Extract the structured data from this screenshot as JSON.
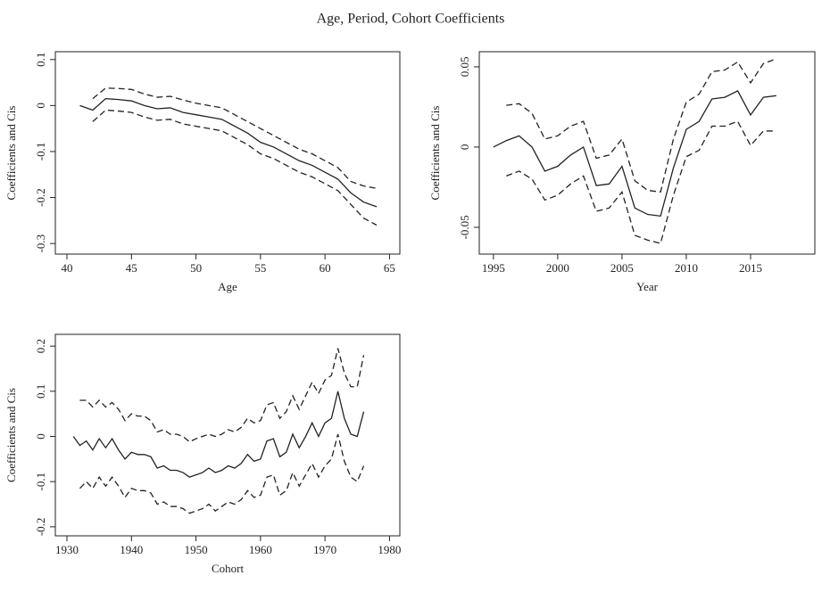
{
  "title": "Age, Period, Cohort Coefficients",
  "chart_data": [
    {
      "type": "line",
      "xlabel": "Age",
      "ylabel": "Coefficients and Cis",
      "x": [
        41,
        42,
        43,
        44,
        45,
        46,
        47,
        48,
        49,
        50,
        51,
        52,
        53,
        54,
        55,
        56,
        57,
        58,
        59,
        60,
        61,
        62,
        63,
        64
      ],
      "series": [
        {
          "color": "#222",
          "line_style": "solid",
          "values": [
            0,
            -0.01,
            0.015,
            0.013,
            0.01,
            0,
            -0.007,
            -0.005,
            -0.015,
            -0.02,
            -0.025,
            -0.03,
            -0.045,
            -0.06,
            -0.08,
            -0.09,
            -0.105,
            -0.12,
            -0.13,
            -0.145,
            -0.16,
            -0.19,
            -0.21,
            -0.22
          ]
        },
        {
          "color": "#222",
          "line_style": "dashed",
          "values": [
            null,
            0.015,
            0.038,
            0.037,
            0.035,
            0.025,
            0.018,
            0.02,
            0.012,
            0.005,
            0,
            -0.005,
            -0.02,
            -0.035,
            -0.05,
            -0.065,
            -0.08,
            -0.095,
            -0.105,
            -0.12,
            -0.135,
            -0.165,
            -0.175,
            -0.18
          ]
        },
        {
          "color": "#222",
          "line_style": "dashed",
          "values": [
            null,
            -0.035,
            -0.01,
            -0.012,
            -0.015,
            -0.025,
            -0.032,
            -0.03,
            -0.04,
            -0.045,
            -0.05,
            -0.055,
            -0.07,
            -0.085,
            -0.105,
            -0.115,
            -0.13,
            -0.145,
            -0.155,
            -0.17,
            -0.185,
            -0.215,
            -0.245,
            -0.26
          ]
        }
      ],
      "xlim": [
        39.1,
        65.8
      ],
      "xticks": [
        40,
        45,
        50,
        55,
        60,
        65
      ],
      "ylim": [
        -0.323,
        0.117
      ],
      "yticks": [
        0.1,
        0,
        -0.1,
        -0.2,
        -0.3
      ]
    },
    {
      "type": "line",
      "xlabel": "Year",
      "ylabel": "Coefficients and Cis",
      "x": [
        1995,
        1996,
        1997,
        1998,
        1999,
        2000,
        2001,
        2002,
        2003,
        2004,
        2005,
        2006,
        2007,
        2008,
        2009,
        2010,
        2011,
        2012,
        2013,
        2014,
        2015,
        2016,
        2017
      ],
      "series": [
        {
          "color": "#222",
          "line_style": "solid",
          "values": [
            0,
            0.004,
            0.007,
            0,
            -0.015,
            -0.012,
            -0.005,
            0,
            -0.024,
            -0.023,
            -0.012,
            -0.038,
            -0.042,
            -0.043,
            -0.013,
            0.011,
            0.016,
            0.03,
            0.031,
            0.035,
            0.02,
            0.031,
            0.032
          ]
        },
        {
          "color": "#222",
          "line_style": "dashed",
          "values": [
            null,
            0.026,
            0.027,
            0.021,
            0.005,
            0.007,
            0.013,
            0.016,
            -0.007,
            -0.005,
            0.005,
            -0.021,
            -0.027,
            -0.028,
            0.005,
            0.028,
            0.033,
            0.047,
            0.048,
            0.053,
            0.04,
            0.052,
            0.055
          ]
        },
        {
          "color": "#222",
          "line_style": "dashed",
          "values": [
            null,
            -0.018,
            -0.015,
            -0.02,
            -0.033,
            -0.03,
            -0.023,
            -0.018,
            -0.04,
            -0.038,
            -0.028,
            -0.055,
            -0.058,
            -0.06,
            -0.03,
            -0.006,
            -0.002,
            0.013,
            0.013,
            0.016,
            0.001,
            0.01,
            0.01
          ]
        }
      ],
      "xlim": [
        1993.9,
        2020.0
      ],
      "xticks": [
        1995,
        2000,
        2005,
        2010,
        2015
      ],
      "ylim": [
        -0.0667,
        0.0594
      ],
      "yticks": [
        0.05,
        0,
        -0.05
      ]
    },
    {
      "type": "line",
      "xlabel": "Cohort",
      "ylabel": "Coefficients and Cis",
      "x": [
        1931,
        1932,
        1933,
        1934,
        1935,
        1936,
        1937,
        1938,
        1939,
        1940,
        1941,
        1942,
        1943,
        1944,
        1945,
        1946,
        1947,
        1948,
        1949,
        1950,
        1951,
        1952,
        1953,
        1954,
        1955,
        1956,
        1957,
        1958,
        1959,
        1960,
        1961,
        1962,
        1963,
        1964,
        1965,
        1966,
        1967,
        1968,
        1969,
        1970,
        1971,
        1972,
        1973,
        1974,
        1975,
        1976
      ],
      "series": [
        {
          "color": "#222",
          "line_style": "solid",
          "values": [
            0,
            -0.02,
            -0.01,
            -0.03,
            -0.005,
            -0.025,
            -0.005,
            -0.03,
            -0.05,
            -0.035,
            -0.04,
            -0.04,
            -0.045,
            -0.07,
            -0.065,
            -0.075,
            -0.075,
            -0.08,
            -0.09,
            -0.085,
            -0.08,
            -0.07,
            -0.08,
            -0.075,
            -0.065,
            -0.07,
            -0.06,
            -0.04,
            -0.055,
            -0.05,
            -0.01,
            -0.005,
            -0.045,
            -0.035,
            0.005,
            -0.025,
            0,
            0.03,
            0,
            0.03,
            0.04,
            0.1,
            0.04,
            0.005,
            0,
            0.055
          ]
        },
        {
          "color": "#222",
          "line_style": "dashed",
          "values": [
            null,
            0.08,
            0.08,
            0.065,
            0.08,
            0.065,
            0.075,
            0.06,
            0.035,
            0.05,
            0.045,
            0.045,
            0.035,
            0.01,
            0.015,
            0.005,
            0.005,
            0,
            -0.012,
            -0.005,
            0,
            0.005,
            0,
            0.005,
            0.015,
            0.01,
            0.02,
            0.04,
            0.03,
            0.035,
            0.07,
            0.075,
            0.04,
            0.055,
            0.09,
            0.06,
            0.09,
            0.12,
            0.095,
            0.125,
            0.135,
            0.195,
            0.14,
            0.11,
            0.11,
            0.18
          ]
        },
        {
          "color": "#222",
          "line_style": "dashed",
          "values": [
            null,
            -0.115,
            -0.1,
            -0.115,
            -0.09,
            -0.11,
            -0.09,
            -0.11,
            -0.135,
            -0.115,
            -0.12,
            -0.12,
            -0.125,
            -0.15,
            -0.145,
            -0.155,
            -0.155,
            -0.16,
            -0.17,
            -0.165,
            -0.16,
            -0.15,
            -0.165,
            -0.155,
            -0.145,
            -0.15,
            -0.14,
            -0.12,
            -0.135,
            -0.13,
            -0.09,
            -0.085,
            -0.13,
            -0.12,
            -0.08,
            -0.11,
            -0.085,
            -0.06,
            -0.09,
            -0.065,
            -0.05,
            0.005,
            -0.055,
            -0.09,
            -0.1,
            -0.065
          ]
        }
      ],
      "xlim": [
        1928.2,
        1981.6
      ],
      "xticks": [
        1930,
        1940,
        1950,
        1960,
        1970,
        1980
      ],
      "ylim": [
        -0.22,
        0.226
      ],
      "yticks": [
        0.2,
        0.1,
        0,
        -0.1,
        -0.2
      ]
    }
  ]
}
